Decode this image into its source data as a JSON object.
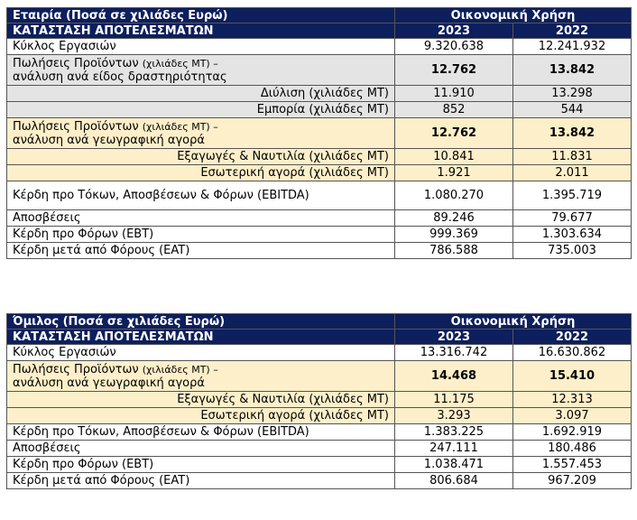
{
  "company": {
    "title": "Εταιρία (Ποσά σε χιλιάδες Ευρώ)",
    "fiscal_year_label": "Οικονομική Χρήση",
    "statement_label": "ΚΑΤΑΣΤΑΣΗ ΑΠΟΤΕΛΕΣΜΑΤΩΝ",
    "year_a": "2023",
    "year_b": "2022",
    "rows": [
      {
        "label": "Κύκλος Εργασιών",
        "v2023": "9.320.638",
        "v2022": "12.241.932"
      },
      {
        "label_main": "Πωλήσεις Προϊόντων ",
        "label_unit": "(χιλιάδες ΜΤ) –",
        "label_line2": "ανάλυση ανά είδος δραστηριότητας",
        "v2023": "12.762",
        "v2022": "13.842"
      },
      {
        "label": "Διύλιση (χιλιάδες ΜΤ)",
        "v2023": "11.910",
        "v2022": "13.298"
      },
      {
        "label": "Εμπορία (χιλιάδες ΜΤ)",
        "v2023": "852",
        "v2022": "544"
      },
      {
        "label_main": "Πωλήσεις Προϊόντων ",
        "label_unit": "(χιλιάδες ΜΤ) –",
        "label_line2": "ανάλυση ανά γεωγραφική αγορά",
        "v2023": "12.762",
        "v2022": "13.842"
      },
      {
        "label": "Εξαγωγές & Ναυτιλία (χιλιάδες ΜΤ)",
        "v2023": "10.841",
        "v2022": "11.831"
      },
      {
        "label": "Εσωτερική αγορά (χιλιάδες ΜΤ)",
        "v2023": "1.921",
        "v2022": "2.011"
      },
      {
        "label": "Κέρδη προ Τόκων, Αποσβέσεων & Φόρων (EBITDA)",
        "v2023": "1.080.270",
        "v2022": "1.395.719"
      },
      {
        "label": "Αποσβέσεις",
        "v2023": "89.246",
        "v2022": "79.677"
      },
      {
        "label": "Κέρδη προ Φόρων (EBT)",
        "v2023": "999.369",
        "v2022": "1.303.634"
      },
      {
        "label": "Κέρδη μετά από Φόρους (EAT)",
        "v2023": "786.588",
        "v2022": "735.003"
      }
    ]
  },
  "group": {
    "title": "Όμιλος (Ποσά σε χιλιάδες Ευρώ)",
    "fiscal_year_label": "Οικονομική Χρήση",
    "statement_label": "ΚΑΤΑΣΤΑΣΗ ΑΠΟΤΕΛΕΣΜΑΤΩΝ",
    "year_a": "2023",
    "year_b": "2022",
    "rows": [
      {
        "label": "Κύκλος Εργασιών",
        "v2023": "13.316.742",
        "v2022": "16.630.862"
      },
      {
        "label_main": "Πωλήσεις Προϊόντων ",
        "label_unit": "(χιλιάδες ΜΤ) –",
        "label_line2": "ανάλυση ανά γεωγραφική αγορά",
        "v2023": "14.468",
        "v2022": "15.410"
      },
      {
        "label": "Εξαγωγές & Ναυτιλία (χιλιάδες ΜΤ)",
        "v2023": "11.175",
        "v2022": "12.313"
      },
      {
        "label": "Εσωτερική αγορά (χιλιάδες ΜΤ)",
        "v2023": "3.293",
        "v2022": "3.097"
      },
      {
        "label": "Κέρδη προ Τόκων, Αποσβέσεων & Φόρων (EBITDA)",
        "v2023": "1.383.225",
        "v2022": "1.692.919"
      },
      {
        "label": "Αποσβέσεις",
        "v2023": "247.111",
        "v2022": "180.486"
      },
      {
        "label": "Κέρδη προ Φόρων (EBT)",
        "v2023": "1.038.471",
        "v2022": "1.557.453"
      },
      {
        "label": "Κέρδη μετά από Φόρους (EAT)",
        "v2023": "806.684",
        "v2022": "967.209"
      }
    ]
  }
}
